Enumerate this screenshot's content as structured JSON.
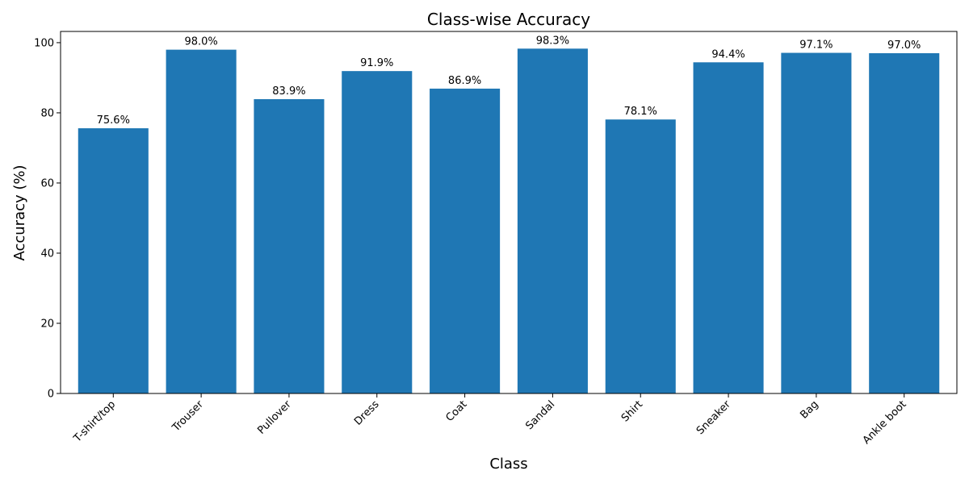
{
  "chart_data": {
    "type": "bar",
    "title": "Class-wise Accuracy",
    "xlabel": "Class",
    "ylabel": "Accuracy (%)",
    "categories": [
      "T-shirt/top",
      "Trouser",
      "Pullover",
      "Dress",
      "Coat",
      "Sandal",
      "Shirt",
      "Sneaker",
      "Bag",
      "Ankle boot"
    ],
    "values": [
      75.6,
      98.0,
      83.9,
      91.9,
      86.9,
      98.3,
      78.1,
      94.4,
      97.1,
      97.0
    ],
    "value_labels": [
      "75.6%",
      "98.0%",
      "83.9%",
      "91.9%",
      "86.9%",
      "98.3%",
      "78.1%",
      "94.4%",
      "97.1%",
      "97.0%"
    ],
    "ylim": [
      0,
      103.2
    ],
    "yticks": [
      0,
      20,
      40,
      60,
      80,
      100
    ],
    "ytick_labels": [
      "0",
      "20",
      "40",
      "60",
      "80",
      "100"
    ],
    "bar_color": "#1f77b4",
    "grid": false,
    "legend": "none"
  }
}
